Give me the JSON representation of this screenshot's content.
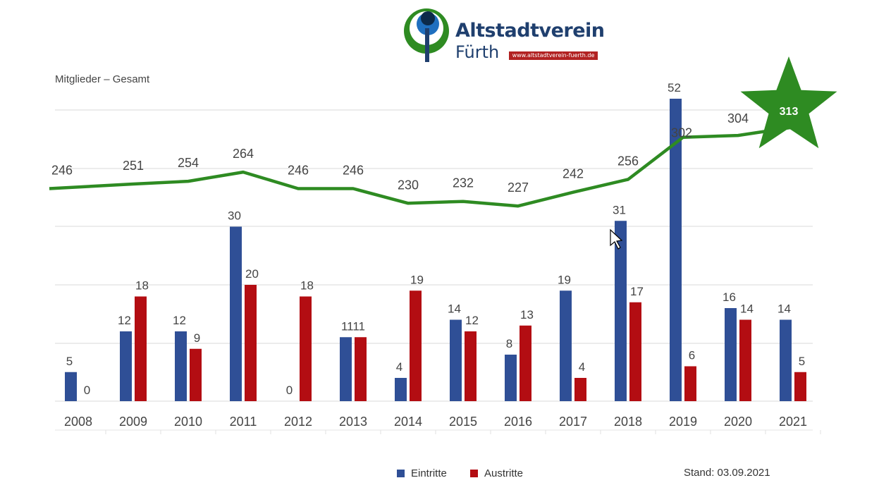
{
  "header": {
    "logo_line1": "Altstadtverein",
    "logo_line2": "Fürth",
    "logo_url": "www.altstadtverein-fuerth.de"
  },
  "footer": {
    "stand": "Stand: 03.09.2021"
  },
  "colors": {
    "eintritte": "#2f4f96",
    "austritte": "#b30d12",
    "gesamt": "#2e8b22",
    "star": "#2e8b22"
  },
  "chart_data": {
    "type": "bar",
    "title": "",
    "subtitle": "Mitglieder – Gesamt",
    "categories": [
      "2008",
      "2009",
      "2010",
      "2011",
      "2012",
      "2013",
      "2014",
      "2015",
      "2016",
      "2017",
      "2018",
      "2019",
      "2020",
      "2021"
    ],
    "series": [
      {
        "name": "Eintritte",
        "type": "bar",
        "values": [
          5,
          12,
          12,
          30,
          0,
          11,
          4,
          14,
          8,
          19,
          31,
          52,
          16,
          14
        ]
      },
      {
        "name": "Austritte",
        "type": "bar",
        "values": [
          0,
          18,
          9,
          20,
          18,
          11,
          19,
          12,
          13,
          4,
          17,
          6,
          14,
          5
        ]
      },
      {
        "name": "",
        "type": "line",
        "values": [
          246,
          251,
          254,
          264,
          246,
          246,
          230,
          232,
          227,
          242,
          256,
          302,
          304,
          313
        ]
      }
    ],
    "bar_ylim": [
      0,
      50
    ],
    "gridlines": true,
    "legend": "bottom",
    "highlight": {
      "category": "2021",
      "shape": "star",
      "label": "313"
    }
  }
}
